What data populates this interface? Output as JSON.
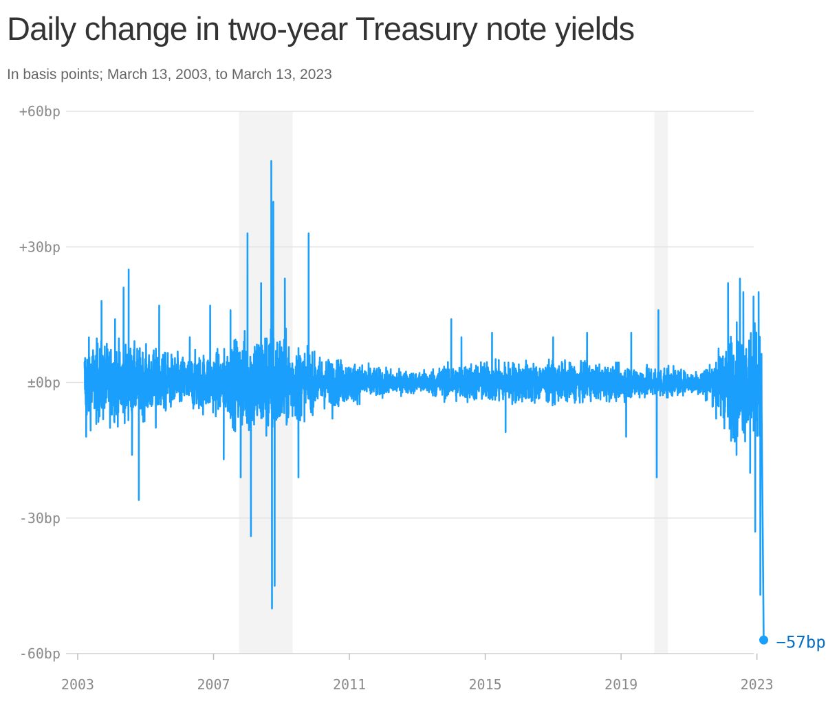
{
  "chart_data": {
    "type": "line",
    "title": "Daily change in two-year Treasury note yields",
    "subtitle": "In basis points; March 13, 2003, to March 13, 2023",
    "x_range": [
      "2003-03-13",
      "2023-03-13"
    ],
    "x_ticks": [
      {
        "value": 2003,
        "label": "2003"
      },
      {
        "value": 2007,
        "label": "2007"
      },
      {
        "value": 2011,
        "label": "2011"
      },
      {
        "value": 2015,
        "label": "2015"
      },
      {
        "value": 2019,
        "label": "2019"
      },
      {
        "value": 2023,
        "label": "2023"
      }
    ],
    "y_ticks": [
      {
        "value": 60,
        "label": "+60bp"
      },
      {
        "value": 30,
        "label": "+30bp"
      },
      {
        "value": 0,
        "label": "±0bp"
      },
      {
        "value": -30,
        "label": "-30bp"
      },
      {
        "value": -60,
        "label": "-60bp"
      }
    ],
    "ylim": [
      -60,
      60
    ],
    "shaded_periods": [
      {
        "start": 2007.75,
        "end": 2009.33
      },
      {
        "start": 2019.98,
        "end": 2020.38
      }
    ],
    "series": [
      {
        "color": "#1a9ffc",
        "band_amplitude": [
          {
            "x": 2003.2,
            "amp": 8
          },
          {
            "x": 2004.5,
            "amp": 7
          },
          {
            "x": 2006.0,
            "amp": 5
          },
          {
            "x": 2007.3,
            "amp": 6
          },
          {
            "x": 2007.8,
            "amp": 9
          },
          {
            "x": 2008.7,
            "amp": 11
          },
          {
            "x": 2009.3,
            "amp": 8
          },
          {
            "x": 2010.0,
            "amp": 5
          },
          {
            "x": 2011.0,
            "amp": 4
          },
          {
            "x": 2012.0,
            "amp": 2.5
          },
          {
            "x": 2013.0,
            "amp": 2
          },
          {
            "x": 2014.0,
            "amp": 3.5
          },
          {
            "x": 2016.0,
            "amp": 4
          },
          {
            "x": 2018.0,
            "amp": 3.5
          },
          {
            "x": 2019.9,
            "amp": 3
          },
          {
            "x": 2020.4,
            "amp": 3
          },
          {
            "x": 2021.0,
            "amp": 1.8
          },
          {
            "x": 2021.7,
            "amp": 4
          },
          {
            "x": 2022.2,
            "amp": 10
          },
          {
            "x": 2023.0,
            "amp": 10
          },
          {
            "x": 2023.15,
            "amp": 8
          }
        ],
        "extremes": [
          {
            "x": 2003.25,
            "y": -12
          },
          {
            "x": 2003.7,
            "y": 18
          },
          {
            "x": 2004.1,
            "y": 14
          },
          {
            "x": 2004.35,
            "y": 21
          },
          {
            "x": 2004.5,
            "y": 25
          },
          {
            "x": 2004.6,
            "y": -16
          },
          {
            "x": 2004.8,
            "y": -26
          },
          {
            "x": 2005.3,
            "y": -10
          },
          {
            "x": 2005.4,
            "y": 17
          },
          {
            "x": 2006.3,
            "y": 10
          },
          {
            "x": 2006.9,
            "y": 17
          },
          {
            "x": 2007.3,
            "y": -17
          },
          {
            "x": 2007.5,
            "y": 16
          },
          {
            "x": 2007.8,
            "y": -21
          },
          {
            "x": 2008.0,
            "y": 33
          },
          {
            "x": 2008.1,
            "y": -34
          },
          {
            "x": 2008.4,
            "y": 22
          },
          {
            "x": 2008.7,
            "y": 49
          },
          {
            "x": 2008.72,
            "y": -50
          },
          {
            "x": 2008.76,
            "y": 40
          },
          {
            "x": 2008.8,
            "y": -45
          },
          {
            "x": 2009.1,
            "y": 23
          },
          {
            "x": 2009.5,
            "y": -21
          },
          {
            "x": 2009.8,
            "y": 33
          },
          {
            "x": 2010.5,
            "y": -8
          },
          {
            "x": 2014.0,
            "y": 14
          },
          {
            "x": 2014.3,
            "y": 10
          },
          {
            "x": 2015.2,
            "y": 11
          },
          {
            "x": 2015.6,
            "y": -11
          },
          {
            "x": 2017.0,
            "y": 10
          },
          {
            "x": 2018.0,
            "y": 11
          },
          {
            "x": 2019.15,
            "y": -12
          },
          {
            "x": 2019.3,
            "y": 11
          },
          {
            "x": 2020.05,
            "y": -21
          },
          {
            "x": 2020.1,
            "y": 16
          },
          {
            "x": 2021.8,
            "y": -8
          },
          {
            "x": 2022.15,
            "y": 22
          },
          {
            "x": 2022.4,
            "y": -16
          },
          {
            "x": 2022.5,
            "y": 23
          },
          {
            "x": 2022.6,
            "y": 20
          },
          {
            "x": 2022.8,
            "y": -20
          },
          {
            "x": 2022.9,
            "y": 19
          },
          {
            "x": 2022.95,
            "y": -33
          },
          {
            "x": 2023.05,
            "y": 20
          },
          {
            "x": 2023.1,
            "y": -47
          }
        ],
        "end_point": {
          "x": 2023.2,
          "y": -57,
          "label": "−57bp"
        }
      }
    ]
  }
}
